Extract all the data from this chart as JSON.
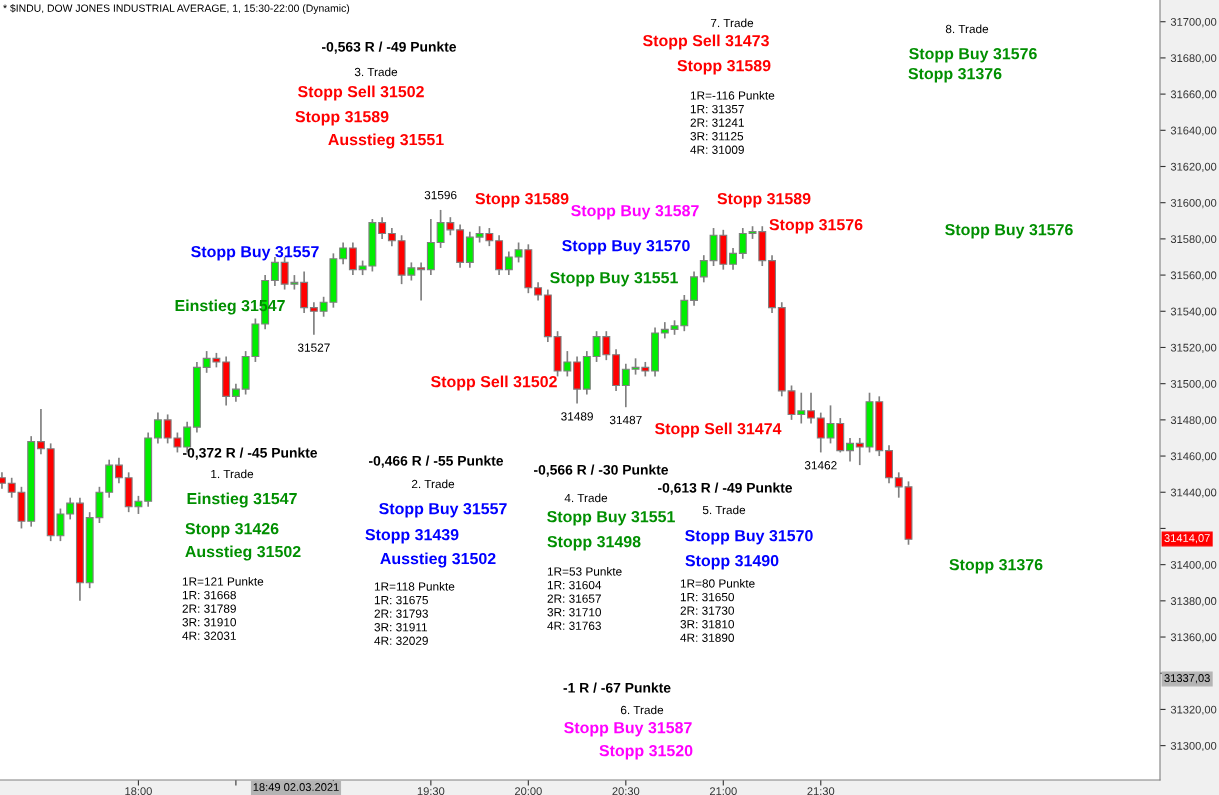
{
  "chart_data": {
    "type": "candlestick",
    "title": "* $INDU, DOW JONES INDUSTRIAL AVERAGE, 1, 15:30-22:00 (Dynamic)",
    "x": [
      17.3,
      17.35,
      17.4,
      17.45,
      17.5,
      17.55,
      17.6,
      17.65,
      17.7,
      17.75,
      17.8,
      17.85,
      17.9,
      17.95,
      18.0,
      18.05,
      18.1,
      18.15,
      18.2,
      18.25,
      18.3,
      18.35,
      18.4,
      18.45,
      18.5,
      18.55,
      18.6,
      18.65,
      18.7,
      18.75,
      18.8,
      18.85,
      18.9,
      18.95,
      19.0,
      19.05,
      19.1,
      19.15,
      19.2,
      19.25,
      19.3,
      19.35,
      19.4,
      19.45,
      19.5,
      19.55,
      19.6,
      19.65,
      19.7,
      19.75,
      19.8,
      19.85,
      19.9,
      19.95,
      20.0,
      20.05,
      20.1,
      20.15,
      20.2,
      20.25,
      20.3,
      20.35,
      20.4,
      20.45,
      20.5,
      20.55,
      20.6,
      20.65,
      20.7,
      20.75,
      20.8,
      20.85,
      20.9,
      20.95,
      21.0,
      21.05,
      21.1,
      21.15,
      21.2,
      21.25,
      21.3,
      21.35,
      21.4,
      21.45,
      21.5,
      21.55,
      21.6,
      21.65,
      21.7,
      21.75,
      21.8,
      21.85,
      21.9,
      21.95
    ],
    "ohlc": [
      [
        31448,
        31451,
        31442,
        31445
      ],
      [
        31445,
        31448,
        31437,
        31440
      ],
      [
        31440,
        31443,
        31420,
        31424
      ],
      [
        31424,
        31471,
        31421,
        31468
      ],
      [
        31468,
        31486,
        31461,
        31464
      ],
      [
        31464,
        31467,
        31413,
        31416
      ],
      [
        31416,
        31431,
        31413,
        31428
      ],
      [
        31428,
        31437,
        31425,
        31434
      ],
      [
        31434,
        31437,
        31380,
        31390
      ],
      [
        31390,
        31429,
        31387,
        31426
      ],
      [
        31426,
        31443,
        31423,
        31440
      ],
      [
        31440,
        31458,
        31437,
        31455
      ],
      [
        31455,
        31459,
        31445,
        31448
      ],
      [
        31448,
        31451,
        31429,
        31432
      ],
      [
        31432,
        31438,
        31428,
        31435
      ],
      [
        31435,
        31473,
        31432,
        31470
      ],
      [
        31470,
        31484,
        31467,
        31480
      ],
      [
        31480,
        31483,
        31467,
        31470
      ],
      [
        31470,
        31473,
        31462,
        31465
      ],
      [
        31465,
        31479,
        31462,
        31476
      ],
      [
        31476,
        31512,
        31473,
        31509
      ],
      [
        31509,
        31518,
        31506,
        31514
      ],
      [
        31514,
        31517,
        31509,
        31512
      ],
      [
        31512,
        31515,
        31488,
        31493
      ],
      [
        31493,
        31500,
        31490,
        31497
      ],
      [
        31497,
        31518,
        31494,
        31515
      ],
      [
        31515,
        31536,
        31512,
        31533
      ],
      [
        31533,
        31560,
        31530,
        31557
      ],
      [
        31557,
        31570,
        31554,
        31567
      ],
      [
        31567,
        31570,
        31552,
        31555
      ],
      [
        31555,
        31560,
        31552,
        31556
      ],
      [
        31556,
        31562,
        31539,
        31542
      ],
      [
        31542,
        31545,
        31527,
        31540
      ],
      [
        31540,
        31548,
        31537,
        31545
      ],
      [
        31545,
        31572,
        31542,
        31569
      ],
      [
        31569,
        31578,
        31566,
        31575
      ],
      [
        31575,
        31578,
        31560,
        31563
      ],
      [
        31563,
        31568,
        31560,
        31565
      ],
      [
        31565,
        31591,
        31562,
        31589
      ],
      [
        31589,
        31592,
        31580,
        31583
      ],
      [
        31583,
        31586,
        31576,
        31579
      ],
      [
        31579,
        31582,
        31555,
        31560
      ],
      [
        31560,
        31567,
        31557,
        31564
      ],
      [
        31564,
        31567,
        31546,
        31563
      ],
      [
        31563,
        31591,
        31560,
        31578
      ],
      [
        31578,
        31596,
        31575,
        31589
      ],
      [
        31589,
        31592,
        31582,
        31585
      ],
      [
        31585,
        31588,
        31564,
        31567
      ],
      [
        31567,
        31584,
        31564,
        31581
      ],
      [
        31581,
        31587,
        31578,
        31583
      ],
      [
        31583,
        31586,
        31576,
        31579
      ],
      [
        31579,
        31582,
        31560,
        31563
      ],
      [
        31563,
        31573,
        31560,
        31570
      ],
      [
        31570,
        31578,
        31567,
        31574
      ],
      [
        31574,
        31577,
        31550,
        31553
      ],
      [
        31553,
        31556,
        31546,
        31549
      ],
      [
        31549,
        31552,
        31523,
        31526
      ],
      [
        31526,
        31529,
        31504,
        31507
      ],
      [
        31507,
        31518,
        31504,
        31512
      ],
      [
        31512,
        31515,
        31489,
        31497
      ],
      [
        31497,
        31518,
        31494,
        31515
      ],
      [
        31515,
        31529,
        31512,
        31526
      ],
      [
        31526,
        31529,
        31513,
        31516
      ],
      [
        31516,
        31519,
        31496,
        31499
      ],
      [
        31499,
        31511,
        31487,
        31508
      ],
      [
        31508,
        31514,
        31505,
        31509
      ],
      [
        31509,
        31512,
        31504,
        31507
      ],
      [
        31507,
        31531,
        31504,
        31528
      ],
      [
        31528,
        31534,
        31525,
        31530
      ],
      [
        31530,
        31535,
        31527,
        31532
      ],
      [
        31532,
        31549,
        31529,
        31546
      ],
      [
        31546,
        31562,
        31543,
        31559
      ],
      [
        31559,
        31571,
        31556,
        31568
      ],
      [
        31568,
        31586,
        31565,
        31582
      ],
      [
        31582,
        31585,
        31563,
        31566
      ],
      [
        31566,
        31575,
        31563,
        31572
      ],
      [
        31572,
        31586,
        31569,
        31583
      ],
      [
        31583,
        31587,
        31580,
        31584
      ],
      [
        31584,
        31587,
        31565,
        31568
      ],
      [
        31568,
        31571,
        31539,
        31542
      ],
      [
        31542,
        31545,
        31493,
        31496
      ],
      [
        31496,
        31499,
        31480,
        31483
      ],
      [
        31483,
        31495,
        31478,
        31485
      ],
      [
        31485,
        31495,
        31478,
        31481
      ],
      [
        31481,
        31484,
        31462,
        31470
      ],
      [
        31470,
        31488,
        31467,
        31478
      ],
      [
        31478,
        31481,
        31462,
        31463
      ],
      [
        31463,
        31470,
        31457,
        31467
      ],
      [
        31467,
        31470,
        31455,
        31465
      ],
      [
        31465,
        31495,
        31462,
        31490
      ],
      [
        31490,
        31493,
        31460,
        31463
      ],
      [
        31463,
        31466,
        31445,
        31448
      ],
      [
        31448,
        31451,
        31437,
        31443
      ],
      [
        31443,
        31446,
        31411,
        31414
      ]
    ],
    "xlim": [
      17.29,
      23.24
    ],
    "ylim": [
      31281,
      31712
    ],
    "xticks": [
      {
        "value": 18,
        "label": "18:00"
      },
      {
        "value": 18.5,
        "label": null
      },
      {
        "value": 19,
        "label": null
      },
      {
        "value": 19.5,
        "label": "19:30"
      },
      {
        "value": 20,
        "label": "20:00"
      },
      {
        "value": 20.5,
        "label": "20:30"
      },
      {
        "value": 21,
        "label": "21:00"
      },
      {
        "value": 21.5,
        "label": "21:30"
      }
    ],
    "yticks": [
      {
        "value": 31300,
        "label": "31300,00"
      },
      {
        "value": 31320,
        "label": "31320,00"
      },
      {
        "value": 31340,
        "label": null
      },
      {
        "value": 31360,
        "label": "31360,00"
      },
      {
        "value": 31380,
        "label": "31380,00"
      },
      {
        "value": 31400,
        "label": "31400,00"
      },
      {
        "value": 31420,
        "label": null
      },
      {
        "value": 31440,
        "label": "31440,00"
      },
      {
        "value": 31460,
        "label": "31460,00"
      },
      {
        "value": 31480,
        "label": "31480,00"
      },
      {
        "value": 31500,
        "label": "31500,00"
      },
      {
        "value": 31520,
        "label": "31520,00"
      },
      {
        "value": 31540,
        "label": "31540,00"
      },
      {
        "value": 31560,
        "label": "31560,00"
      },
      {
        "value": 31580,
        "label": "31580,00"
      },
      {
        "value": 31600,
        "label": "31600,00"
      },
      {
        "value": 31620,
        "label": "31620,00"
      },
      {
        "value": 31640,
        "label": "31640,00"
      },
      {
        "value": 31660,
        "label": "31660,00"
      },
      {
        "value": 31680,
        "label": "31680,00"
      },
      {
        "value": 31700,
        "label": "31700,00"
      }
    ],
    "annotations": [
      "-0,563 R / -49 Punkte",
      "3. Trade",
      "Stopp Sell 31502",
      "Stopp 31589",
      "Ausstieg 31551",
      "7. Trade",
      "Stopp Sell 31473",
      "Stopp 31589",
      "1R=-116 Punkte\n1R: 31357\n2R: 31241\n3R: 31125\n4R: 31009",
      "8. Trade",
      "Stopp Buy 31576",
      "Stopp 31376",
      "Stopp 31589",
      "Stopp Buy 31587",
      "Stopp 31589",
      "Stopp 31576",
      "Stopp Buy 31570",
      "Stopp Buy 31557",
      "Stopp Buy 31576",
      "Stopp Buy 31551",
      "Einstieg 31547",
      "Stopp Sell 31502",
      "Stopp Sell 31474",
      "-0,372 R / -45 Punkte",
      "1. Trade",
      "Einstieg 31547",
      "Stopp 31426",
      "Ausstieg 31502",
      "1R=121 Punkte\n1R: 31668\n2R: 31789\n3R: 31910\n4R: 32031",
      "-0,466 R / -55 Punkte",
      "2. Trade",
      "Stopp Buy 31557",
      "Stopp 31439",
      "Ausstieg 31502",
      "1R=118 Punkte\n1R: 31675\n2R: 31793\n3R: 31911\n4R: 32029",
      "-0,566 R / -30 Punkte",
      "4. Trade",
      "Stopp Buy 31551",
      "Stopp 31498",
      "1R=53 Punkte\n1R: 31604\n2R: 31657\n3R: 31710\n4R: 31763",
      "-0,613 R / -49 Punkte",
      "5. Trade",
      "Stopp Buy 31570",
      "Stopp 31490",
      "1R=80 Punkte\n1R: 31650\n2R: 31730\n3R: 31810\n4R: 31890",
      "-1 R / -67 Punkte",
      "6. Trade",
      "Stopp Buy 31587",
      "Stopp 31520",
      "Stopp 31376",
      {
        "text": "31596",
        "x": 19.55,
        "y": 31596
      },
      {
        "text": "31527",
        "x": 18.9,
        "y": 31527
      },
      {
        "text": "31489",
        "x": 20.25,
        "y": 31489
      },
      {
        "text": "31487",
        "x": 20.5,
        "y": 31487
      },
      {
        "text": "31462",
        "x": 21.5,
        "y": 31462
      },
      "31414,07",
      "31337,03",
      "18:49 02.03.2021"
    ]
  }
}
